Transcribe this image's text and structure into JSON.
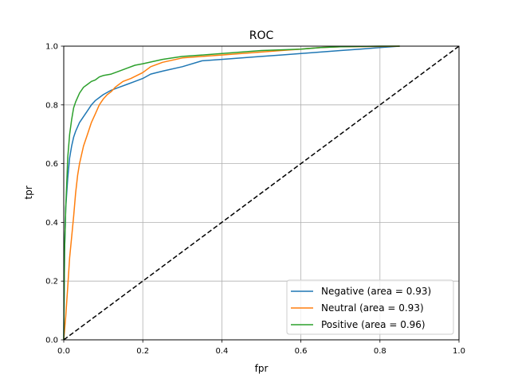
{
  "chart_data": {
    "type": "line",
    "title": "ROC",
    "xlabel": "fpr",
    "ylabel": "tpr",
    "xlim": [
      0,
      1
    ],
    "ylim": [
      0,
      1
    ],
    "xticks": [
      0.0,
      0.2,
      0.4,
      0.6,
      0.8,
      1.0
    ],
    "yticks": [
      0.0,
      0.2,
      0.4,
      0.6,
      0.8,
      1.0
    ],
    "xtick_labels": [
      "0.0",
      "0.2",
      "0.4",
      "0.6",
      "0.8",
      "1.0"
    ],
    "ytick_labels": [
      "0.0",
      "0.2",
      "0.4",
      "0.6",
      "0.8",
      "1.0"
    ],
    "grid": true,
    "legend_position": "lower-right",
    "series": [
      {
        "name": "Negative (area = 0.93)",
        "color": "#1f77b4",
        "x": [
          0,
          0.002,
          0.005,
          0.01,
          0.015,
          0.02,
          0.025,
          0.03,
          0.04,
          0.05,
          0.06,
          0.07,
          0.08,
          0.09,
          0.1,
          0.12,
          0.14,
          0.16,
          0.18,
          0.2,
          0.22,
          0.25,
          0.3,
          0.35,
          0.4,
          0.45,
          0.5,
          0.55,
          0.6,
          0.65,
          0.7,
          0.75,
          0.8,
          0.85
        ],
        "y": [
          0,
          0.3,
          0.45,
          0.55,
          0.62,
          0.66,
          0.69,
          0.71,
          0.74,
          0.76,
          0.78,
          0.8,
          0.815,
          0.825,
          0.835,
          0.85,
          0.86,
          0.87,
          0.88,
          0.89,
          0.905,
          0.915,
          0.93,
          0.95,
          0.955,
          0.96,
          0.965,
          0.97,
          0.975,
          0.98,
          0.985,
          0.99,
          0.995,
          1.0
        ]
      },
      {
        "name": "Neutral (area = 0.93)",
        "color": "#ff7f0e",
        "x": [
          0,
          0.005,
          0.01,
          0.015,
          0.02,
          0.025,
          0.03,
          0.035,
          0.04,
          0.05,
          0.06,
          0.07,
          0.08,
          0.09,
          0.1,
          0.11,
          0.12,
          0.13,
          0.14,
          0.15,
          0.17,
          0.2,
          0.22,
          0.25,
          0.3,
          0.35,
          0.4,
          0.45,
          0.5,
          0.55,
          0.6,
          0.65,
          0.7,
          0.8,
          0.85
        ],
        "y": [
          0,
          0.08,
          0.18,
          0.28,
          0.35,
          0.42,
          0.5,
          0.56,
          0.6,
          0.66,
          0.7,
          0.74,
          0.77,
          0.8,
          0.82,
          0.835,
          0.845,
          0.86,
          0.87,
          0.88,
          0.89,
          0.91,
          0.93,
          0.945,
          0.96,
          0.965,
          0.97,
          0.975,
          0.98,
          0.985,
          0.99,
          0.995,
          0.998,
          0.999,
          1.0
        ]
      },
      {
        "name": "Positive (area = 0.96)",
        "color": "#2ca02c",
        "x": [
          0,
          0.002,
          0.005,
          0.008,
          0.01,
          0.015,
          0.02,
          0.025,
          0.03,
          0.04,
          0.05,
          0.06,
          0.07,
          0.08,
          0.09,
          0.1,
          0.12,
          0.14,
          0.16,
          0.18,
          0.2,
          0.25,
          0.3,
          0.35,
          0.4,
          0.5,
          0.6,
          0.65,
          0.7,
          0.8,
          0.85
        ],
        "y": [
          0,
          0.3,
          0.45,
          0.55,
          0.62,
          0.7,
          0.75,
          0.79,
          0.81,
          0.84,
          0.86,
          0.87,
          0.88,
          0.885,
          0.895,
          0.9,
          0.905,
          0.915,
          0.925,
          0.935,
          0.94,
          0.955,
          0.965,
          0.97,
          0.975,
          0.985,
          0.99,
          0.995,
          0.998,
          1.0,
          1.0
        ]
      }
    ],
    "reference_line": {
      "x": [
        0,
        1
      ],
      "y": [
        0,
        1
      ],
      "color": "#000000",
      "style": "dashed"
    }
  }
}
